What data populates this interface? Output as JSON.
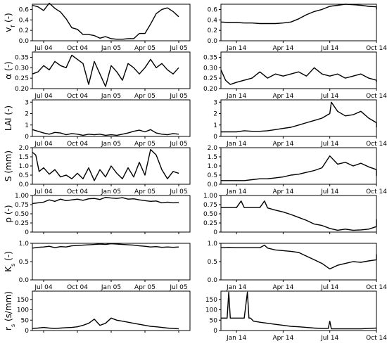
{
  "chart_data": [
    {
      "type": "line",
      "panel": "v_f-2004",
      "ylabel": "v",
      "ylabel_sub": "f",
      "ylabel_unit": " (-)",
      "ylim": [
        0,
        0.7
      ],
      "yticks": [
        0,
        0.2,
        0.4,
        0.6
      ],
      "ytick_labels": [
        "0.0",
        "0.2",
        "0.4",
        "0.6"
      ],
      "xlim": [
        0,
        14
      ],
      "xticks": [
        1,
        4,
        7,
        10,
        13
      ],
      "xtick_labels": [
        "Jul 04",
        "Oct 04",
        "Jan 05",
        "Apr 05",
        "Jul 05"
      ],
      "show_xticklabels": true,
      "x": [
        0,
        0.5,
        1,
        1.5,
        2,
        2.5,
        3,
        3.5,
        4,
        4.5,
        5,
        5.5,
        6,
        6.5,
        7,
        7.5,
        8,
        8.5,
        9,
        9.5,
        10,
        10.5,
        11,
        11.5,
        12,
        12.5,
        13
      ],
      "y": [
        0.68,
        0.65,
        0.58,
        0.72,
        0.62,
        0.55,
        0.42,
        0.25,
        0.22,
        0.12,
        0.12,
        0.1,
        0.05,
        0.08,
        0.04,
        0.03,
        0.03,
        0.04,
        0.04,
        0.14,
        0.14,
        0.32,
        0.52,
        0.6,
        0.63,
        0.56,
        0.46
      ]
    },
    {
      "type": "line",
      "panel": "v_f-2014",
      "ylim": [
        0,
        0.7
      ],
      "yticks": [
        0,
        0.2,
        0.4,
        0.6
      ],
      "ytick_labels": [
        "0.0",
        "0.2",
        "0.4",
        "0.6"
      ],
      "xlim": [
        0,
        10
      ],
      "xticks": [
        1,
        4,
        7,
        10
      ],
      "xtick_labels": [
        "Jan 14",
        "Apr 14",
        "Jul 14",
        "Oct 14"
      ],
      "show_xticklabels": true,
      "x": [
        0,
        0.5,
        1,
        1.5,
        2,
        2.5,
        3,
        3.5,
        4,
        4.5,
        5,
        5.5,
        6,
        6.5,
        7,
        7.5,
        8,
        8.5,
        9,
        9.5,
        10,
        10.5
      ],
      "y": [
        0.36,
        0.35,
        0.35,
        0.34,
        0.34,
        0.33,
        0.33,
        0.33,
        0.34,
        0.36,
        0.42,
        0.5,
        0.56,
        0.6,
        0.66,
        0.68,
        0.7,
        0.69,
        0.68,
        0.66,
        0.65,
        0.6
      ]
    },
    {
      "type": "line",
      "panel": "albedo-2004",
      "ylabel": "α",
      "ylabel_unit": " (-)",
      "ylim": [
        0.2,
        0.375
      ],
      "yticks": [
        0.2,
        0.25,
        0.3,
        0.35
      ],
      "ytick_labels": [
        "0.20",
        "0.25",
        "0.30",
        "0.35"
      ],
      "xlim": [
        0,
        14
      ],
      "xticks": [
        1,
        4,
        7,
        10,
        13
      ],
      "xtick_labels": [
        "Jul 04",
        "Oct 04",
        "Jan 05",
        "Apr 05",
        "Jul 05"
      ],
      "show_xticklabels": true,
      "x": [
        0,
        0.5,
        1,
        1.5,
        2,
        2.5,
        3,
        3.5,
        4,
        4.5,
        5,
        5.5,
        6,
        6.5,
        7,
        7.5,
        8,
        8.5,
        9,
        9.5,
        10,
        10.5,
        11,
        11.5,
        12,
        12.5,
        13
      ],
      "y": [
        0.27,
        0.28,
        0.31,
        0.29,
        0.33,
        0.31,
        0.3,
        0.36,
        0.34,
        0.32,
        0.22,
        0.33,
        0.27,
        0.21,
        0.31,
        0.28,
        0.24,
        0.32,
        0.3,
        0.27,
        0.3,
        0.34,
        0.3,
        0.32,
        0.29,
        0.27,
        0.3
      ]
    },
    {
      "type": "line",
      "panel": "albedo-2014",
      "ylim": [
        0.2,
        0.375
      ],
      "yticks": [
        0.2,
        0.25,
        0.3,
        0.35
      ],
      "ytick_labels": [
        "0.20",
        "0.25",
        "0.30",
        "0.35"
      ],
      "xlim": [
        0,
        10
      ],
      "xticks": [
        1,
        4,
        7,
        10
      ],
      "xtick_labels": [
        "Jan 14",
        "Apr 14",
        "Jul 14",
        "Oct 14"
      ],
      "show_xticklabels": true,
      "x": [
        0,
        0.3,
        0.6,
        1,
        1.5,
        2,
        2.5,
        3,
        3.5,
        4,
        4.5,
        5,
        5.5,
        6,
        6.5,
        7,
        7.5,
        8,
        8.5,
        9,
        9.5,
        10,
        10.5
      ],
      "y": [
        0.29,
        0.24,
        0.22,
        0.23,
        0.24,
        0.25,
        0.28,
        0.25,
        0.27,
        0.26,
        0.27,
        0.28,
        0.26,
        0.3,
        0.27,
        0.26,
        0.27,
        0.25,
        0.26,
        0.27,
        0.25,
        0.24,
        0.23
      ]
    },
    {
      "type": "line",
      "panel": "LAI-2004",
      "ylabel": "LAI",
      "ylabel_unit": " (-)",
      "ylim": [
        0,
        3.2
      ],
      "yticks": [
        0,
        1,
        2,
        3
      ],
      "ytick_labels": [
        "0",
        "1",
        "2",
        "3"
      ],
      "xlim": [
        0,
        14
      ],
      "xticks": [
        1,
        4,
        7,
        10,
        13
      ],
      "xtick_labels": [
        "Jul 04",
        "Oct 04",
        "Jan 05",
        "Apr 05",
        "Jul 05"
      ],
      "show_xticklabels": true,
      "x": [
        0,
        0.5,
        1,
        1.5,
        2,
        2.5,
        3,
        3.5,
        4,
        4.5,
        5,
        5.5,
        6,
        6.5,
        7,
        7.5,
        8,
        8.5,
        9,
        9.5,
        10,
        10.5,
        11,
        11.5,
        12,
        12.5,
        13
      ],
      "y": [
        0.6,
        0.45,
        0.3,
        0.2,
        0.35,
        0.3,
        0.15,
        0.25,
        0.2,
        0.1,
        0.2,
        0.15,
        0.2,
        0.1,
        0.15,
        0.1,
        0.2,
        0.3,
        0.45,
        0.55,
        0.4,
        0.6,
        0.3,
        0.2,
        0.15,
        0.25,
        0.2
      ]
    },
    {
      "type": "line",
      "panel": "LAI-2014",
      "ylim": [
        0,
        3.2
      ],
      "yticks": [
        0,
        1,
        2,
        3
      ],
      "ytick_labels": [
        "0",
        "1",
        "2",
        "3"
      ],
      "xlim": [
        0,
        10
      ],
      "xticks": [
        1,
        4,
        7,
        10
      ],
      "xtick_labels": [
        "Jan 14",
        "Apr 14",
        "Jul 14",
        "Oct 14"
      ],
      "show_xticklabels": true,
      "x": [
        0,
        0.5,
        1,
        1.5,
        2,
        2.5,
        3,
        3.5,
        4,
        4.5,
        5,
        5.5,
        6,
        6.5,
        7,
        7.1,
        7.5,
        8,
        8.5,
        9,
        9.5,
        10,
        10.5
      ],
      "y": [
        0.4,
        0.4,
        0.4,
        0.5,
        0.45,
        0.45,
        0.5,
        0.6,
        0.7,
        0.8,
        1.0,
        1.2,
        1.4,
        1.6,
        2.0,
        3.0,
        2.2,
        1.8,
        1.9,
        2.2,
        1.6,
        1.2,
        0.8
      ]
    },
    {
      "type": "line",
      "panel": "S-2004",
      "ylabel": "S",
      "ylabel_unit": " (mm)",
      "ylim": [
        0,
        2.0
      ],
      "yticks": [
        0,
        0.5,
        1.0,
        1.5,
        2.0
      ],
      "ytick_labels": [
        "0.0",
        "0.5",
        "1.0",
        "1.5",
        "2.0"
      ],
      "xlim": [
        0,
        14
      ],
      "xticks": [
        1,
        4,
        7,
        10,
        13
      ],
      "xtick_labels": [
        "Jul 04",
        "Oct 04",
        "Jan 05",
        "Apr 05",
        "Jul 05"
      ],
      "show_xticklabels": true,
      "x": [
        0,
        0.3,
        0.6,
        1,
        1.5,
        2,
        2.5,
        3,
        3.5,
        4,
        4.5,
        5,
        5.5,
        6,
        6.5,
        7,
        7.5,
        8,
        8.5,
        9,
        9.5,
        10,
        10.5,
        11,
        11.5,
        12,
        12.5,
        13
      ],
      "y": [
        1.75,
        1.6,
        0.7,
        0.9,
        0.55,
        0.8,
        0.4,
        0.5,
        0.3,
        0.6,
        0.3,
        0.9,
        0.2,
        0.8,
        0.4,
        1.0,
        0.6,
        0.3,
        0.9,
        0.4,
        1.2,
        0.5,
        1.9,
        1.6,
        0.8,
        0.3,
        0.7,
        0.6
      ]
    },
    {
      "type": "line",
      "panel": "S-2014",
      "ylim": [
        0,
        2.0
      ],
      "yticks": [
        0,
        0.5,
        1.0,
        1.5,
        2.0
      ],
      "ytick_labels": [
        "0.0",
        "0.5",
        "1.0",
        "1.5",
        "2.0"
      ],
      "xlim": [
        0,
        10
      ],
      "xticks": [
        1,
        4,
        7,
        10
      ],
      "xtick_labels": [
        "Jan 14",
        "Apr 14",
        "Jul 14",
        "Oct 14"
      ],
      "show_xticklabels": true,
      "x": [
        0,
        0.5,
        1,
        1.5,
        2,
        2.5,
        3,
        3.5,
        4,
        4.5,
        5,
        5.5,
        6,
        6.5,
        7,
        7.5,
        8,
        8.5,
        9,
        9.5,
        10,
        10.5
      ],
      "y": [
        0.2,
        0.2,
        0.2,
        0.2,
        0.25,
        0.3,
        0.3,
        0.35,
        0.4,
        0.5,
        0.55,
        0.65,
        0.75,
        0.9,
        1.55,
        1.1,
        1.2,
        1.0,
        1.15,
        0.95,
        0.8,
        0.45
      ]
    },
    {
      "type": "line",
      "panel": "p-2004",
      "ylabel": "p",
      "ylabel_unit": " (-)",
      "ylim": [
        0,
        1.0
      ],
      "yticks": [
        0,
        0.25,
        0.5,
        0.75,
        1.0
      ],
      "ytick_labels": [
        "0",
        "0.25",
        "0.50",
        "0.75",
        "1.00"
      ],
      "xlim": [
        0,
        14
      ],
      "xticks": [
        1,
        4,
        7,
        10,
        13
      ],
      "xtick_labels": [
        "Jul 04",
        "Oct 04",
        "Jan 05",
        "Apr 05",
        "Jul 05"
      ],
      "show_xticklabels": false,
      "x": [
        0,
        0.5,
        1,
        1.5,
        2,
        2.5,
        3,
        3.5,
        4,
        4.5,
        5,
        5.5,
        6,
        6.5,
        7,
        7.5,
        8,
        8.5,
        9,
        9.5,
        10,
        10.5,
        11,
        11.5,
        12,
        12.5,
        13
      ],
      "y": [
        0.78,
        0.8,
        0.82,
        0.88,
        0.84,
        0.9,
        0.86,
        0.88,
        0.9,
        0.87,
        0.91,
        0.92,
        0.89,
        0.95,
        0.93,
        0.92,
        0.94,
        0.9,
        0.91,
        0.88,
        0.86,
        0.84,
        0.85,
        0.8,
        0.82,
        0.8,
        0.81
      ]
    },
    {
      "type": "line",
      "panel": "p-2014",
      "ylim": [
        0,
        1.0
      ],
      "yticks": [
        0,
        0.25,
        0.5,
        0.75,
        1.0
      ],
      "ytick_labels": [
        "0",
        "0.25",
        "0.50",
        "0.75",
        "1.00"
      ],
      "xlim": [
        0,
        10
      ],
      "xticks": [
        1,
        4,
        7,
        10
      ],
      "xtick_labels": [
        "Jan 14",
        "Apr 14",
        "Jul 14",
        "Oct 14"
      ],
      "show_xticklabels": false,
      "x": [
        0,
        0.5,
        1,
        1.3,
        1.5,
        2,
        2.5,
        2.8,
        3,
        3.5,
        4,
        4.5,
        5,
        5.5,
        6,
        6.5,
        7,
        7.5,
        8,
        8.5,
        9,
        9.5,
        10,
        10.5
      ],
      "y": [
        0.67,
        0.67,
        0.67,
        0.85,
        0.67,
        0.67,
        0.67,
        0.85,
        0.66,
        0.6,
        0.55,
        0.48,
        0.4,
        0.32,
        0.22,
        0.18,
        0.1,
        0.05,
        0.08,
        0.05,
        0.06,
        0.08,
        0.15,
        0.35
      ]
    },
    {
      "type": "line",
      "panel": "K_s-2004",
      "ylabel": "K",
      "ylabel_sub": "s",
      "ylabel_unit": " (-)",
      "ylim": [
        0,
        1.0
      ],
      "yticks": [
        0,
        0.5,
        1.0
      ],
      "ytick_labels": [
        "0.0",
        "0.5",
        "1.0"
      ],
      "xlim": [
        0,
        14
      ],
      "xticks": [
        1,
        4,
        7,
        10,
        13
      ],
      "xtick_labels": [
        "Jul 04",
        "Oct 04",
        "Jan 05",
        "Apr 05",
        "Jul 05"
      ],
      "show_xticklabels": true,
      "x": [
        0,
        0.5,
        1,
        1.5,
        2,
        2.5,
        3,
        3.5,
        4,
        4.5,
        5,
        5.5,
        6,
        6.5,
        7,
        7.5,
        8,
        8.5,
        9,
        9.5,
        10,
        10.5,
        11,
        11.5,
        12,
        12.5,
        13
      ],
      "y": [
        0.87,
        0.89,
        0.9,
        0.92,
        0.88,
        0.91,
        0.9,
        0.93,
        0.94,
        0.95,
        0.96,
        0.97,
        0.98,
        0.97,
        0.99,
        0.98,
        0.97,
        0.96,
        0.95,
        0.93,
        0.92,
        0.9,
        0.91,
        0.89,
        0.9,
        0.89,
        0.9
      ]
    },
    {
      "type": "line",
      "panel": "K_s-2014",
      "ylim": [
        0,
        1.0
      ],
      "yticks": [
        0,
        0.5,
        1.0
      ],
      "ytick_labels": [
        "0.0",
        "0.5",
        "1.0"
      ],
      "xlim": [
        0,
        10
      ],
      "xticks": [
        1,
        4,
        7,
        10
      ],
      "xtick_labels": [
        "Jan 14",
        "Apr 14",
        "Jul 14",
        "Oct 14"
      ],
      "show_xticklabels": true,
      "x": [
        0,
        0.5,
        1,
        1.5,
        2,
        2.5,
        2.8,
        3,
        3.5,
        4,
        4.5,
        5,
        5.5,
        6,
        6.5,
        7,
        7.5,
        8,
        8.5,
        9,
        9.5,
        10,
        10.5
      ],
      "y": [
        0.88,
        0.89,
        0.88,
        0.88,
        0.88,
        0.88,
        0.95,
        0.87,
        0.82,
        0.8,
        0.78,
        0.75,
        0.65,
        0.55,
        0.45,
        0.3,
        0.4,
        0.45,
        0.5,
        0.48,
        0.52,
        0.55,
        0.7
      ]
    },
    {
      "type": "line",
      "panel": "r_s-2004",
      "ylabel": "r",
      "ylabel_sub": "s",
      "ylabel_unit": " (s/mm)",
      "ylim": [
        0,
        190
      ],
      "yticks": [
        0,
        50,
        100,
        150
      ],
      "ytick_labels": [
        "0",
        "50",
        "100",
        "150"
      ],
      "xlim": [
        0,
        14
      ],
      "xticks": [
        1,
        4,
        7,
        10,
        13
      ],
      "xtick_labels": [
        "Jul 04",
        "Oct 04",
        "Jan 05",
        "Apr 05",
        "Jul 05"
      ],
      "show_xticklabels": false,
      "x": [
        0,
        0.5,
        1,
        1.5,
        2,
        2.5,
        3,
        3.5,
        4,
        4.5,
        5,
        5.5,
        6,
        6.5,
        7,
        7.5,
        8,
        8.5,
        9,
        9.5,
        10,
        10.5,
        11,
        11.5,
        12,
        12.5,
        13
      ],
      "y": [
        10,
        12,
        15,
        12,
        10,
        12,
        14,
        15,
        18,
        25,
        35,
        55,
        25,
        35,
        60,
        50,
        45,
        40,
        35,
        30,
        25,
        20,
        18,
        15,
        12,
        10,
        8
      ]
    },
    {
      "type": "line",
      "panel": "r_s-2014",
      "ylim": [
        0,
        190
      ],
      "yticks": [
        0,
        50,
        100,
        150
      ],
      "ytick_labels": [
        "0",
        "50",
        "100",
        "150"
      ],
      "xlim": [
        0,
        10
      ],
      "xticks": [
        1,
        4,
        7,
        10
      ],
      "xtick_labels": [
        "Jan 14",
        "Apr 14",
        "Jul 14",
        "Oct 14"
      ],
      "show_xticklabels": true,
      "x": [
        0,
        0.4,
        0.5,
        0.6,
        0.8,
        1.5,
        1.7,
        1.8,
        1.9,
        2.1,
        2.5,
        3,
        3.5,
        4,
        4.5,
        5,
        5.5,
        6,
        6.5,
        6.9,
        7,
        7.1,
        7.5,
        8,
        8.5,
        9,
        9.5,
        10,
        10.5
      ],
      "y": [
        60,
        60,
        185,
        60,
        60,
        60,
        185,
        60,
        60,
        45,
        40,
        35,
        30,
        25,
        20,
        18,
        15,
        12,
        10,
        10,
        45,
        8,
        8,
        8,
        8,
        8,
        10,
        12,
        12
      ]
    }
  ]
}
